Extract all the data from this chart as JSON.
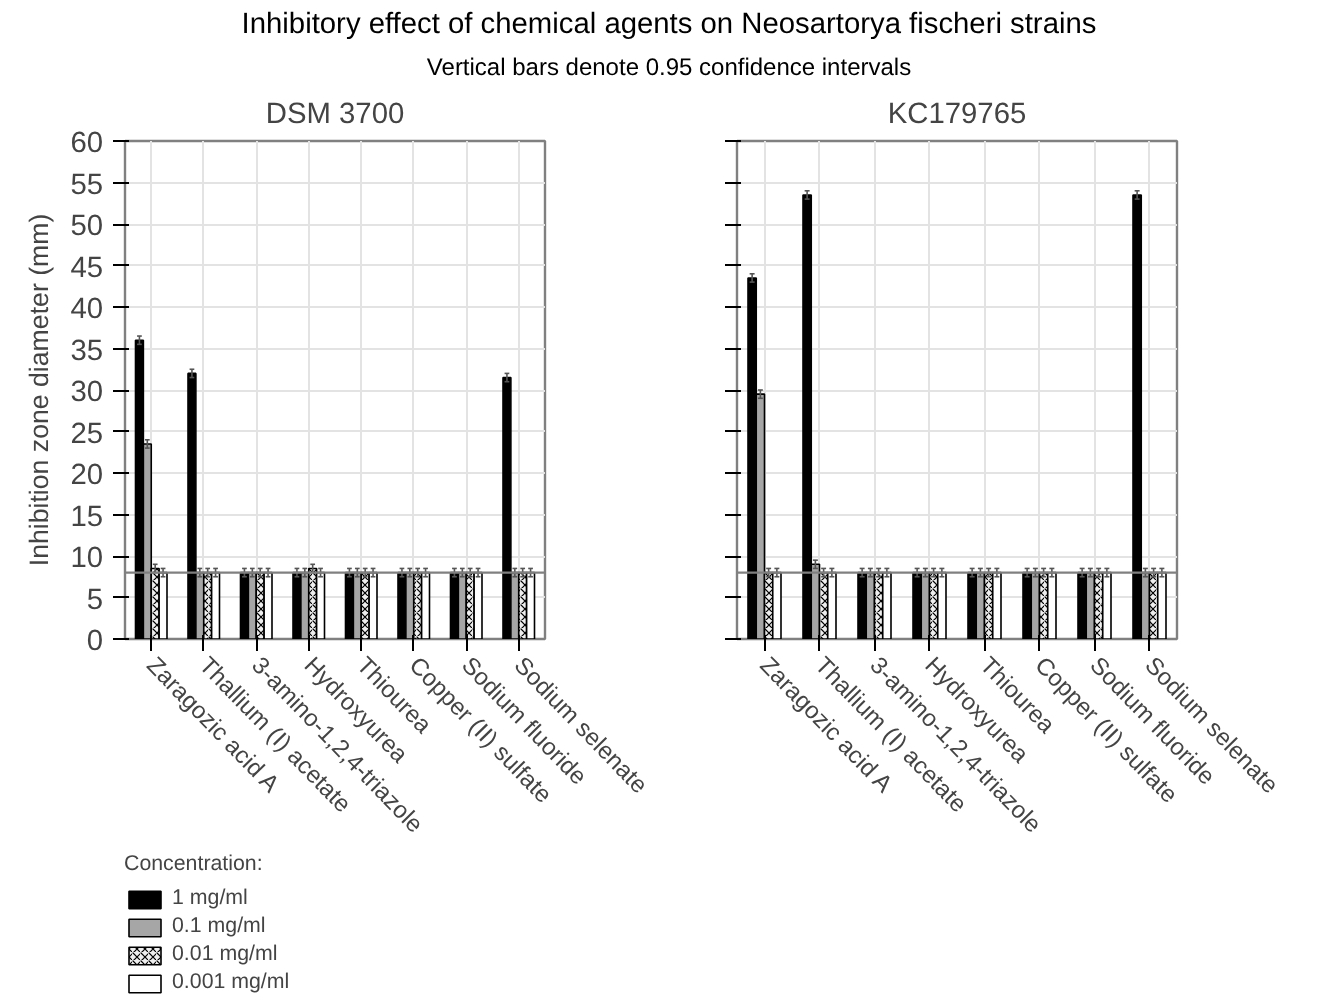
{
  "chart_data": [
    {
      "type": "bar",
      "title": "DSM 3700",
      "annotations": [
        "Inhibitory effect of chemical agents on Neosartorya fischeri strains",
        "Vertical bars denote 0.95 confidence intervals"
      ],
      "ylabel": "Inhibition zone diameter (mm)",
      "legend_title": "Concentration:",
      "legend": "bottom left",
      "categories": [
        "Zaragozic acid A",
        "Thallium (I) acetate",
        "3-amino-1,2,4-triazole",
        "Hydroxyurea",
        "Thiourea",
        "Copper (II) sulfate",
        "Sodium fluoride",
        "Sodium selenate"
      ],
      "series": [
        {
          "name": "1 mg/ml",
          "color": "#000000",
          "values": [
            36,
            32,
            8,
            8,
            8,
            8,
            8,
            31.5
          ],
          "errors": [
            0.5,
            0.5,
            0.5,
            0.5,
            0.5,
            0.5,
            0.5,
            0.5
          ]
        },
        {
          "name": "0.1 mg/ml",
          "color": "#a6a6a6",
          "values": [
            23.5,
            8,
            8,
            8,
            8,
            8,
            8,
            8
          ],
          "errors": [
            0.5,
            0.5,
            0.5,
            0.5,
            0.5,
            0.5,
            0.5,
            0.5
          ]
        },
        {
          "name": "0.01 mg/ml",
          "color": "#eeeeee",
          "values": [
            8.5,
            8,
            8,
            8.5,
            8,
            8,
            8,
            8
          ],
          "errors": [
            0.5,
            0.5,
            0.5,
            0.5,
            0.5,
            0.5,
            0.5,
            0.5
          ]
        },
        {
          "name": "0.001 mg/ml",
          "color": "#ffffff",
          "values": [
            8,
            8,
            8,
            8,
            8,
            8,
            8,
            8
          ],
          "errors": [
            0.5,
            0.5,
            0.5,
            0.5,
            0.5,
            0.5,
            0.5,
            0.5
          ]
        }
      ],
      "ylim": [
        0,
        60
      ],
      "yticks": [
        0,
        5,
        10,
        15,
        20,
        25,
        30,
        35,
        40,
        45,
        50,
        55,
        60
      ],
      "grid": true,
      "ref_lines": [
        {
          "axis": "y",
          "value": 8,
          "color": "#808080"
        }
      ]
    },
    {
      "type": "bar",
      "title": "KC179765",
      "tick_labels": "x",
      "categories": [
        "Zaragozic acid A",
        "Thallium (I) acetate",
        "3-amino-1,2,4-triazole",
        "Hydroxyurea",
        "Thiourea",
        "Copper (II) sulfate",
        "Sodium fluoride",
        "Sodium selenate"
      ],
      "series": [
        {
          "color": "#000000",
          "values": [
            43.5,
            53.5,
            8,
            8,
            8,
            8,
            8,
            53.5
          ],
          "errors": [
            0.5,
            0.5,
            0.5,
            0.5,
            0.5,
            0.5,
            0.5,
            0.5
          ]
        },
        {
          "color": "#a6a6a6",
          "values": [
            29.5,
            9,
            8,
            8,
            8,
            8,
            8,
            8
          ],
          "errors": [
            0.5,
            0.5,
            0.5,
            0.5,
            0.5,
            0.5,
            0.5,
            0.5
          ]
        },
        {
          "color": "#eeeeee",
          "values": [
            8,
            8,
            8,
            8,
            8,
            8,
            8,
            8
          ],
          "errors": [
            0.5,
            0.5,
            0.5,
            0.5,
            0.5,
            0.5,
            0.5,
            0.5
          ]
        },
        {
          "color": "#ffffff",
          "values": [
            8,
            8,
            8,
            8,
            8,
            8,
            8,
            8
          ],
          "errors": [
            0.5,
            0.5,
            0.5,
            0.5,
            0.5,
            0.5,
            0.5,
            0.5
          ]
        }
      ],
      "ylim": [
        0,
        60
      ],
      "yticks": [
        0,
        5,
        10,
        15,
        20,
        25,
        30,
        35,
        40,
        45,
        50,
        55,
        60
      ],
      "grid": true,
      "ref_lines": [
        {
          "axis": "y",
          "value": 8,
          "color": "#808080"
        }
      ]
    }
  ]
}
